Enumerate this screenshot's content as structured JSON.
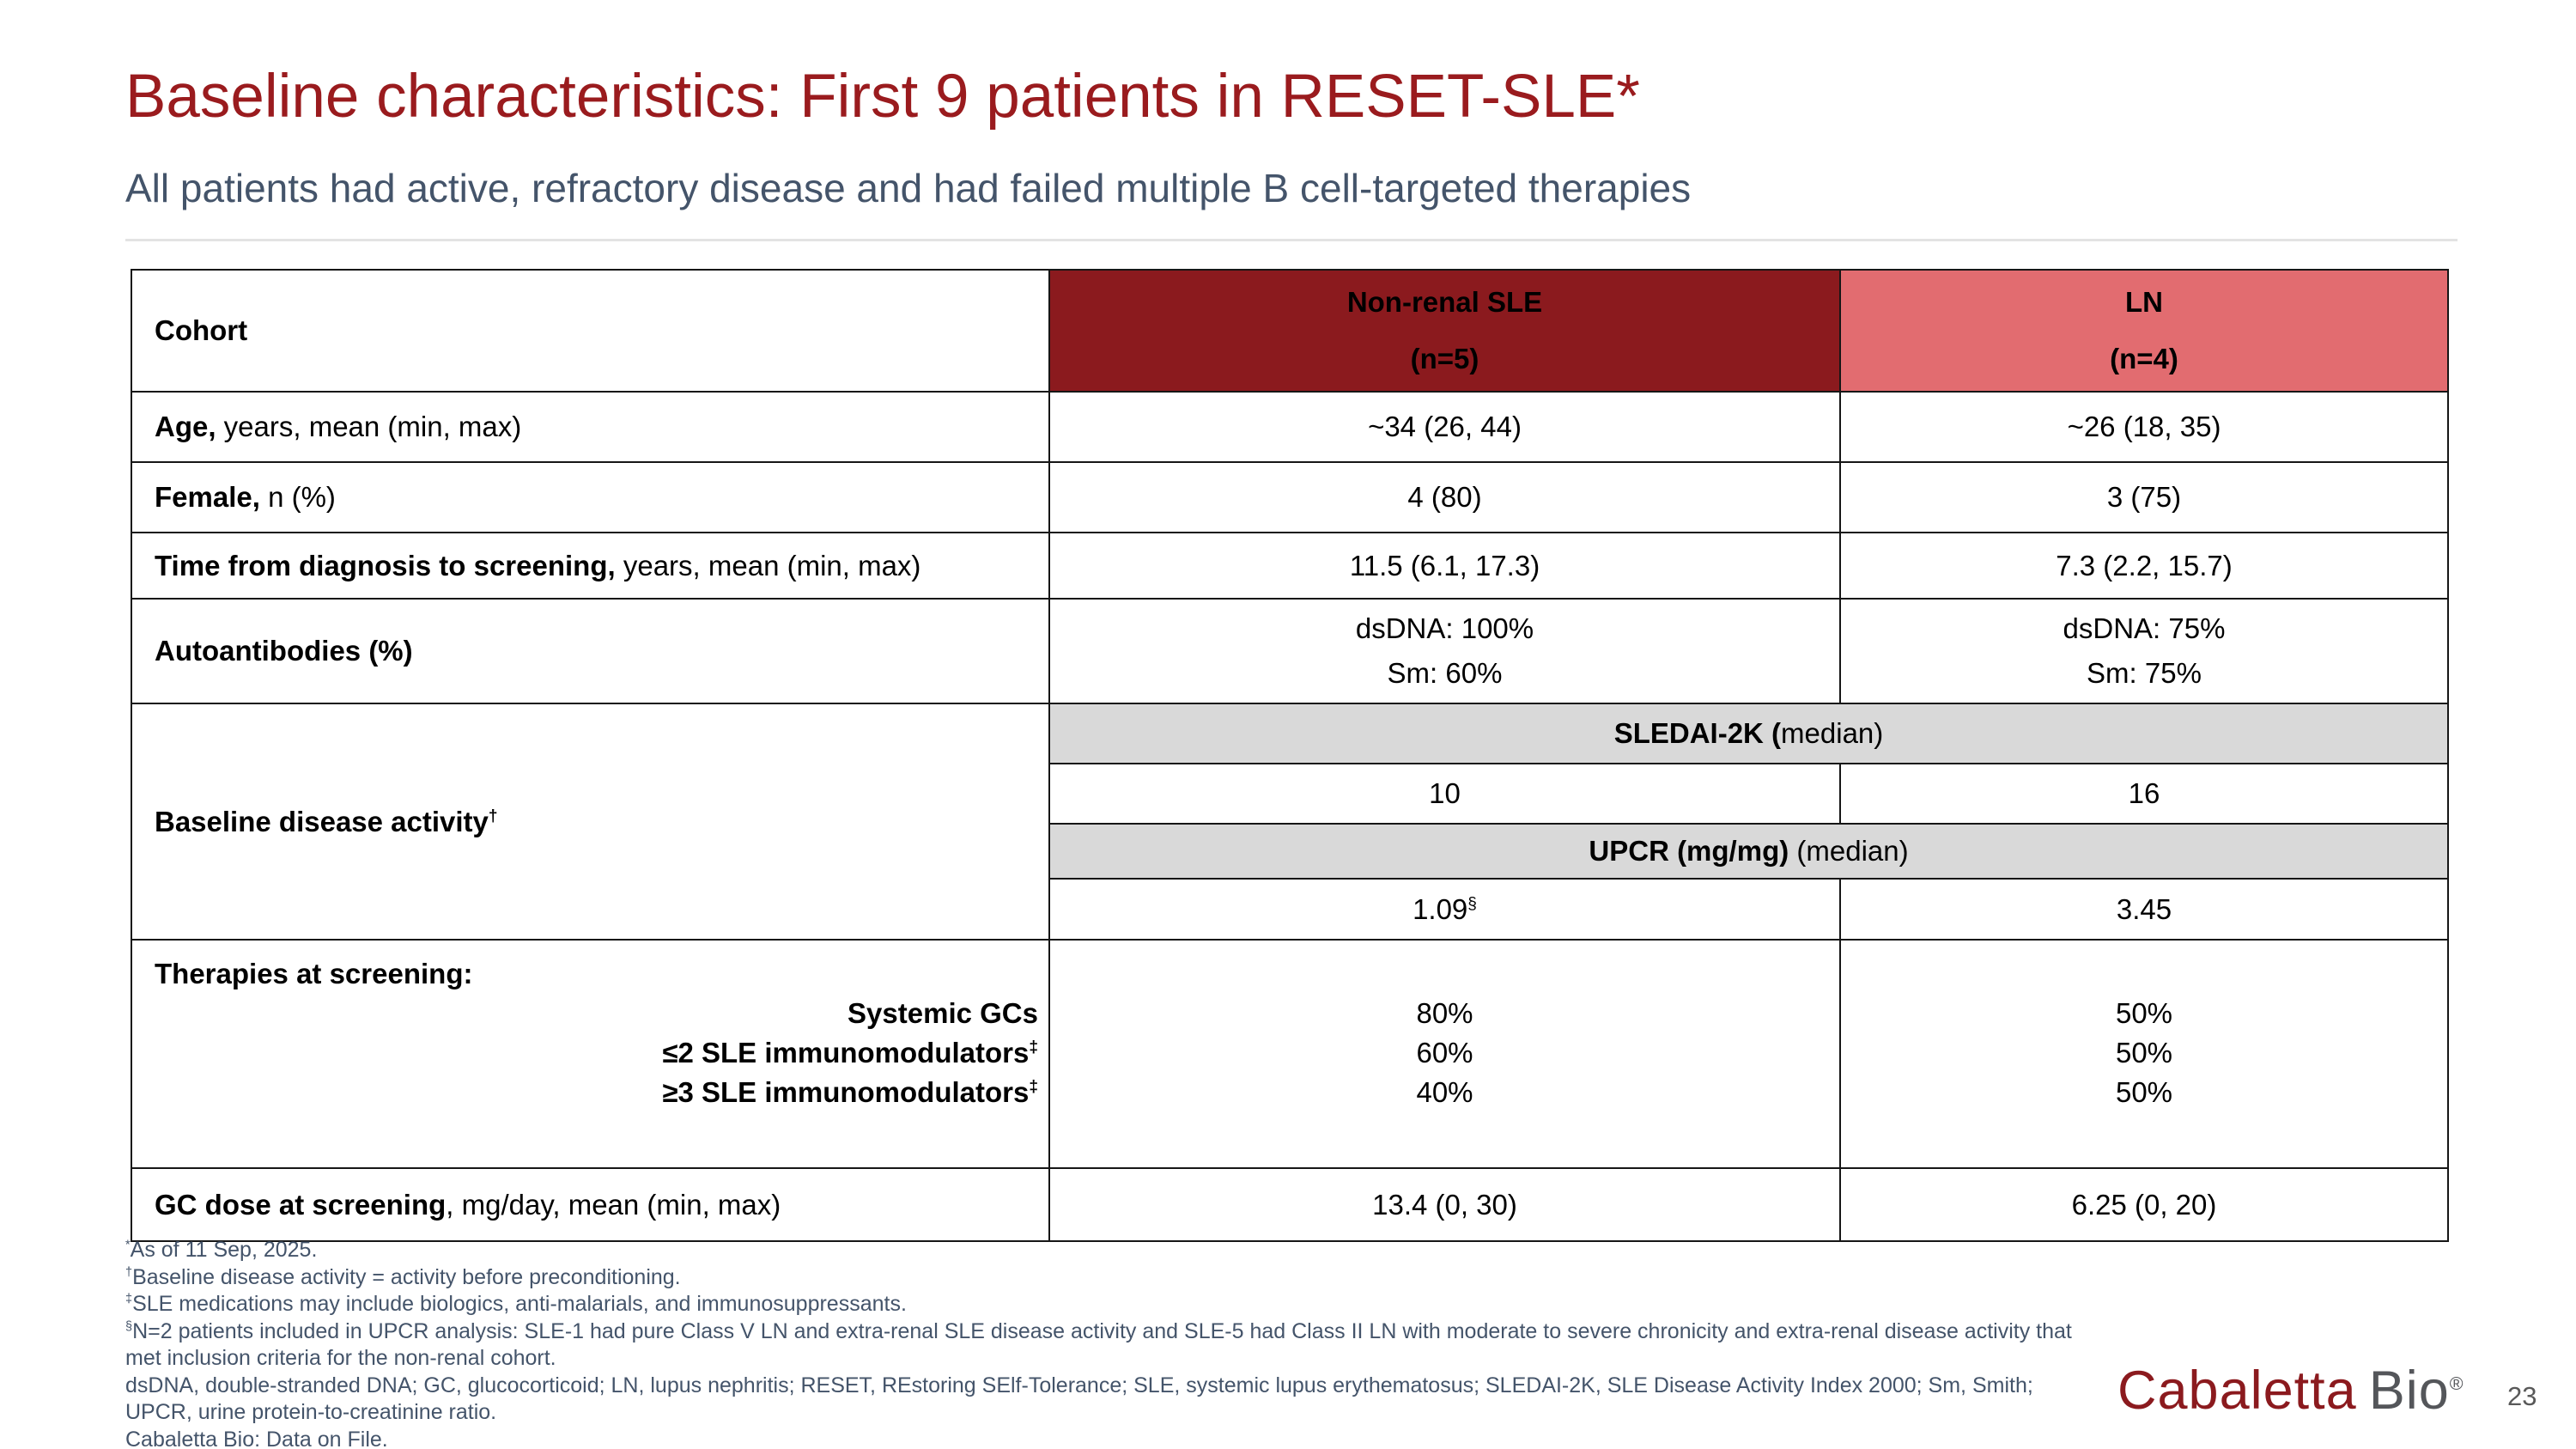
{
  "slide": {
    "title": "Baseline characteristics: First 9 patients in RESET-SLE*",
    "subtitle": "All patients had active, refractory disease and had failed multiple B cell-targeted therapies"
  },
  "colors": {
    "header_dark": "#8B1A1E",
    "header_light": "#E26C70",
    "band_gray": "#D9D9D9",
    "slate": "#44546A",
    "title_red": "#9A1B1E",
    "logo_red": "#8B1A1E",
    "logo_gray": "#54565A",
    "page_gray": "#595959"
  },
  "table": {
    "header": {
      "cohort": "Cohort",
      "nonrenal_line1": "Non-renal SLE",
      "nonrenal_line2": "(n=5)",
      "ln_line1": "LN",
      "ln_line2": "(n=4)"
    },
    "rows": {
      "age": {
        "label_bold": "Age,",
        "label_rest": " years, mean (min, max)",
        "v1": "~34 (26, 44)",
        "v2": "~26 (18, 35)"
      },
      "female": {
        "label_bold": "Female,",
        "label_rest": " n (%)",
        "v1": "4 (80)",
        "v2": "3 (75)"
      },
      "time": {
        "label_bold": "Time from diagnosis to screening,",
        "label_rest": " years, mean (min, max)",
        "v1": "11.5 (6.1, 17.3)",
        "v2": "7.3 (2.2, 15.7)"
      },
      "autoantibodies": {
        "label_bold": "Autoantibodies (%)",
        "v1_line1": "dsDNA: 100%",
        "v1_line2": "Sm: 60%",
        "v2_line1": "dsDNA: 75%",
        "v2_line2": "Sm: 75%"
      },
      "baseline_activity": {
        "label_bold": "Baseline disease activity",
        "label_sup": "†",
        "sledai_header_bold": "SLEDAI-2K (",
        "sledai_header_rest": "median)",
        "sledai_v1": "10",
        "sledai_v2": "16",
        "upcr_header_bold": "UPCR (mg/mg)",
        "upcr_header_rest": " (median)",
        "upcr_v1": "1.09",
        "upcr_v1_sup": "§",
        "upcr_v2": "3.45"
      },
      "therapies": {
        "label": "Therapies at screening:",
        "sub1": "Systemic GCs",
        "sub2": "≤2 SLE immunomodulators",
        "sub2_sup": "‡",
        "sub3": "≥3 SLE immunomodulators",
        "sub3_sup": "‡",
        "v1": [
          "80%",
          "60%",
          "40%"
        ],
        "v2": [
          "50%",
          "50%",
          "50%"
        ]
      },
      "gc_dose": {
        "label_bold": "GC dose at screening",
        "label_rest": ", mg/day, mean (min, max)",
        "v1": "13.4 (0, 30)",
        "v2": "6.25 (0, 20)"
      }
    }
  },
  "footnotes": [
    {
      "sup": "*",
      "text": "As of 11 Sep, 2025."
    },
    {
      "sup": "†",
      "text": "Baseline disease activity = activity before preconditioning."
    },
    {
      "sup": "‡",
      "text": "SLE medications may include biologics, anti-malarials, and immunosuppressants."
    },
    {
      "sup": "§",
      "text": "N=2 patients included in UPCR analysis: SLE-1 had pure Class V LN and extra-renal SLE disease activity and SLE-5 had Class II LN with moderate to severe chronicity and extra-renal disease activity that"
    },
    {
      "sup": "",
      "text": "met inclusion criteria for the non-renal cohort."
    },
    {
      "sup": "",
      "text": "dsDNA, double-stranded DNA; GC, glucocorticoid; LN, lupus nephritis; RESET, REstoring SElf-Tolerance; SLE, systemic lupus erythematosus; SLEDAI-2K, SLE Disease Activity Index 2000; Sm, Smith;"
    },
    {
      "sup": "",
      "text": "UPCR, urine protein-to-creatinine ratio."
    },
    {
      "sup": "",
      "text": "Cabaletta Bio: Data on File."
    }
  ],
  "footer": {
    "logo_primary": "Cabaletta",
    "logo_secondary": "Bio",
    "logo_registered": "®",
    "page_number": "23"
  }
}
